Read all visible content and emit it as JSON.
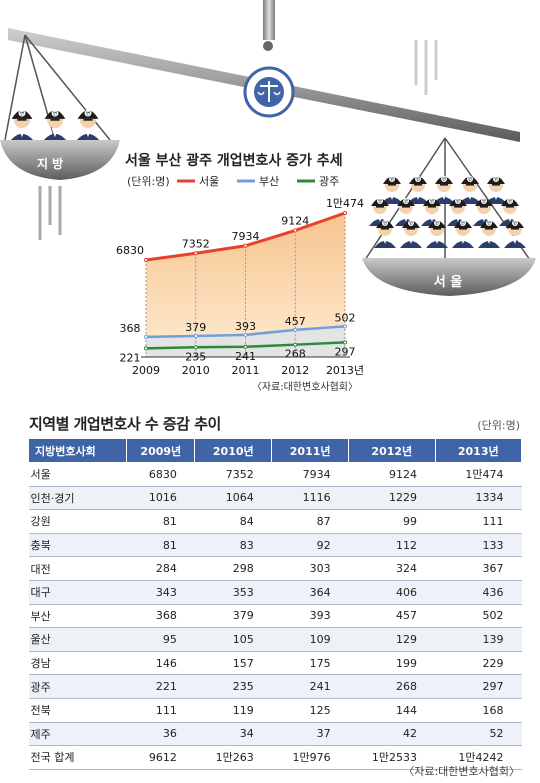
{
  "chart_data": [
    {
      "type": "line",
      "title": "서울 부산 광주 개업변호사 증가 추세",
      "unit": "(단위:명)",
      "categories": [
        "2009",
        "2010",
        "2011",
        "2012",
        "2013년"
      ],
      "series": [
        {
          "name": "서울",
          "color": "#e6412b",
          "values": [
            6830,
            7352,
            7934,
            9124,
            10474
          ],
          "labels": [
            "6830",
            "7352",
            "7934",
            "9124",
            "1만474"
          ]
        },
        {
          "name": "부산",
          "color": "#6fa0d8",
          "values": [
            368,
            379,
            393,
            457,
            502
          ],
          "labels": [
            "368",
            "379",
            "393",
            "457",
            "502"
          ]
        },
        {
          "name": "광주",
          "color": "#2d8a3c",
          "values": [
            221,
            235,
            241,
            268,
            297
          ],
          "labels": [
            "221",
            "235",
            "241",
            "268",
            "297"
          ]
        }
      ],
      "source": "〈자료:대한변호사협회〉"
    },
    {
      "type": "table",
      "title": "지역별 개업변호사 수 증감 추이",
      "unit": "(단위:명)",
      "columns": [
        "지방변호사회",
        "2009년",
        "2010년",
        "2011년",
        "2012년",
        "2013년"
      ],
      "rows": [
        [
          "서울",
          "6830",
          "7352",
          "7934",
          "9124",
          "1만474"
        ],
        [
          "인천·경기",
          "1016",
          "1064",
          "1116",
          "1229",
          "1334"
        ],
        [
          "강원",
          "81",
          "84",
          "87",
          "99",
          "111"
        ],
        [
          "충북",
          "81",
          "83",
          "92",
          "112",
          "133"
        ],
        [
          "대전",
          "284",
          "298",
          "303",
          "324",
          "367"
        ],
        [
          "대구",
          "343",
          "353",
          "364",
          "406",
          "436"
        ],
        [
          "부산",
          "368",
          "379",
          "393",
          "457",
          "502"
        ],
        [
          "울산",
          "95",
          "105",
          "109",
          "129",
          "139"
        ],
        [
          "경남",
          "146",
          "157",
          "175",
          "199",
          "229"
        ],
        [
          "광주",
          "221",
          "235",
          "241",
          "268",
          "297"
        ],
        [
          "전북",
          "111",
          "119",
          "125",
          "144",
          "168"
        ],
        [
          "제주",
          "36",
          "34",
          "37",
          "42",
          "52"
        ],
        [
          "전국 합계",
          "9612",
          "1만263",
          "1만976",
          "1만2533",
          "1만4242"
        ]
      ],
      "source": "〈자료:대한변호사협회〉"
    }
  ],
  "illustration": {
    "left_pan_label": "지 방",
    "right_pan_label": "서 울",
    "figure_badge": "변"
  }
}
